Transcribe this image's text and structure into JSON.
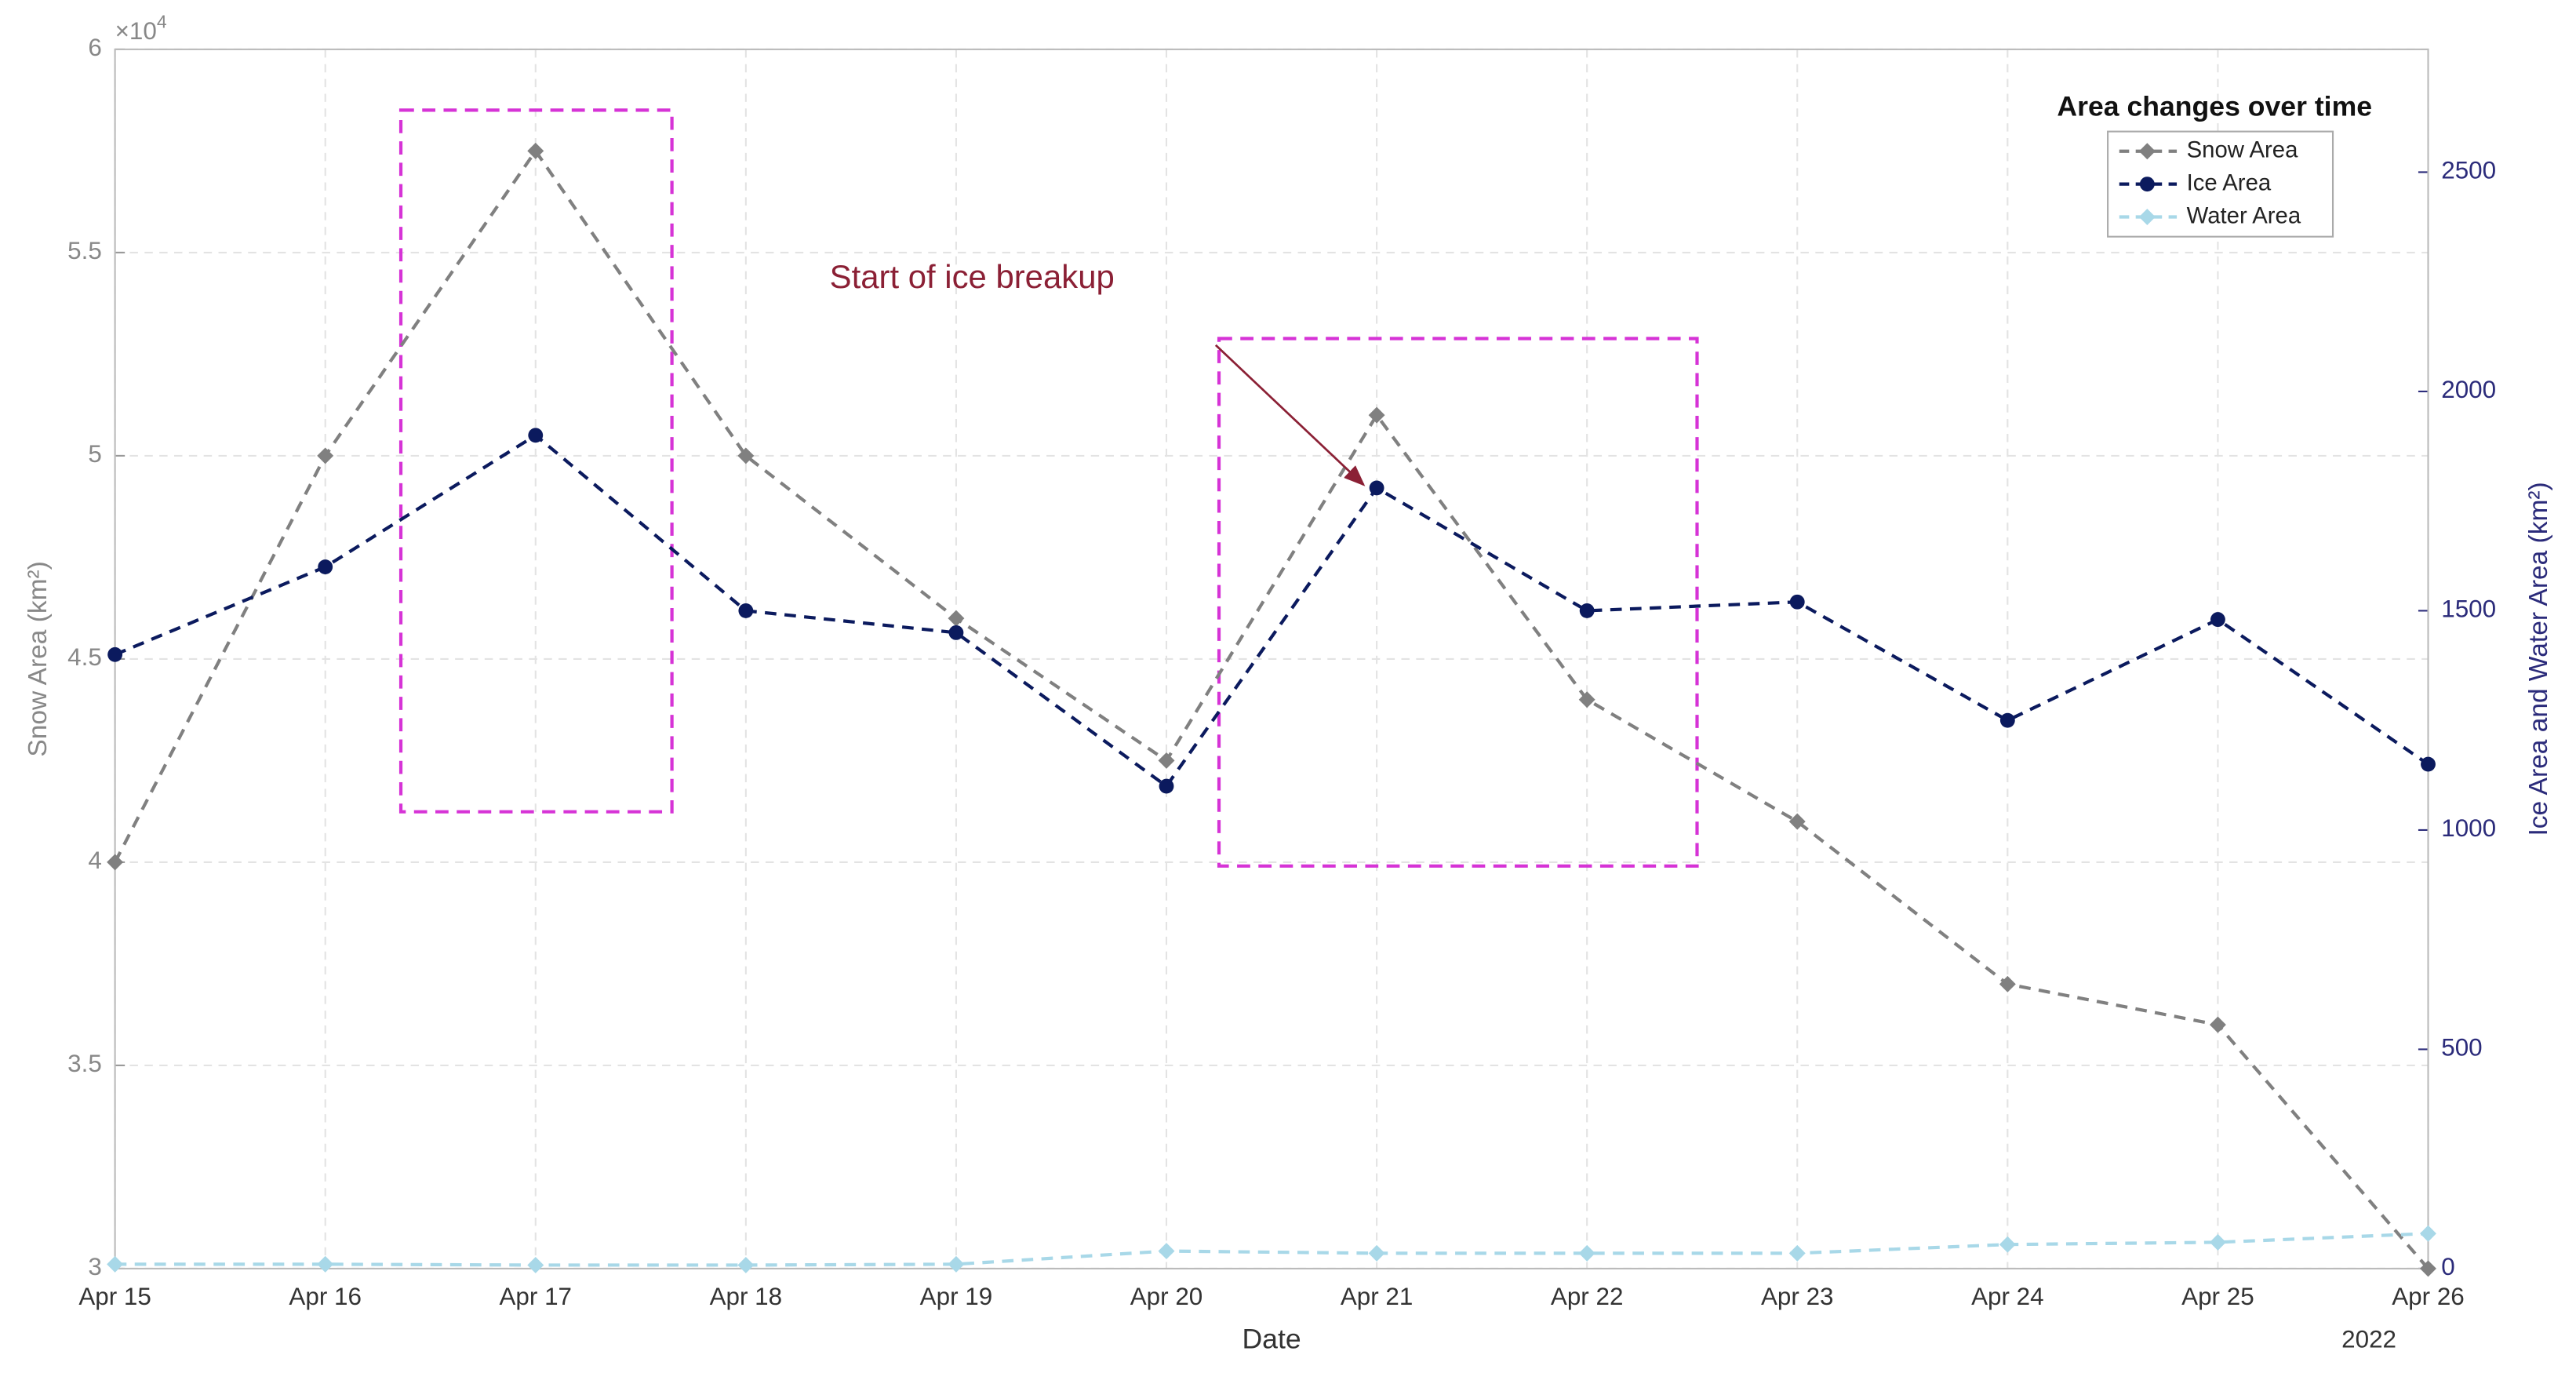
{
  "chart_data": {
    "type": "line",
    "categories": [
      "Apr 15",
      "Apr 16",
      "Apr 17",
      "Apr 18",
      "Apr 19",
      "Apr 20",
      "Apr 21",
      "Apr 22",
      "Apr 23",
      "Apr 24",
      "Apr 25",
      "Apr 26"
    ],
    "x_year_label": "2022",
    "xlabel": "Date",
    "ylabel": "Snow Area (km²)",
    "y_multiplier": {
      "base": "×10",
      "exponent": "4"
    },
    "y2label": "Ice Area and Water Area (km²)",
    "ylim": [
      30000,
      60000
    ],
    "yticks": [
      {
        "value": 30000,
        "label": "3"
      },
      {
        "value": 35000,
        "label": "3.5"
      },
      {
        "value": 40000,
        "label": "4"
      },
      {
        "value": 45000,
        "label": "4.5"
      },
      {
        "value": 50000,
        "label": "5"
      },
      {
        "value": 55000,
        "label": "5.5"
      },
      {
        "value": 60000,
        "label": "6"
      }
    ],
    "y2lim": [
      0,
      2780
    ],
    "y2ticks": [
      0,
      500,
      1000,
      1500,
      2000,
      2500
    ],
    "grid": true,
    "legend": "upper right",
    "legend_title": "Area changes over time",
    "annotation": "Start of ice breakup",
    "series": [
      {
        "name": "Snow Area",
        "color": "#808080",
        "marker": "diamond",
        "values": [
          40000,
          50000,
          57500,
          50000,
          46000,
          42500,
          51000,
          44000,
          41000,
          37000,
          36000,
          30000
        ]
      },
      {
        "name": "Ice Area",
        "color": "#0b1a5e",
        "marker": "circle",
        "axis": "y2",
        "values": [
          1400,
          1600,
          1900,
          1500,
          1450,
          1100,
          1780,
          1500,
          1520,
          1250,
          1480,
          1150
        ]
      },
      {
        "name": "Water Area",
        "color": "#a8d8e8",
        "marker": "diamond",
        "axis": "y2",
        "values": [
          10,
          10,
          8,
          8,
          10,
          40,
          35,
          35,
          35,
          55,
          60,
          80
        ]
      }
    ]
  }
}
